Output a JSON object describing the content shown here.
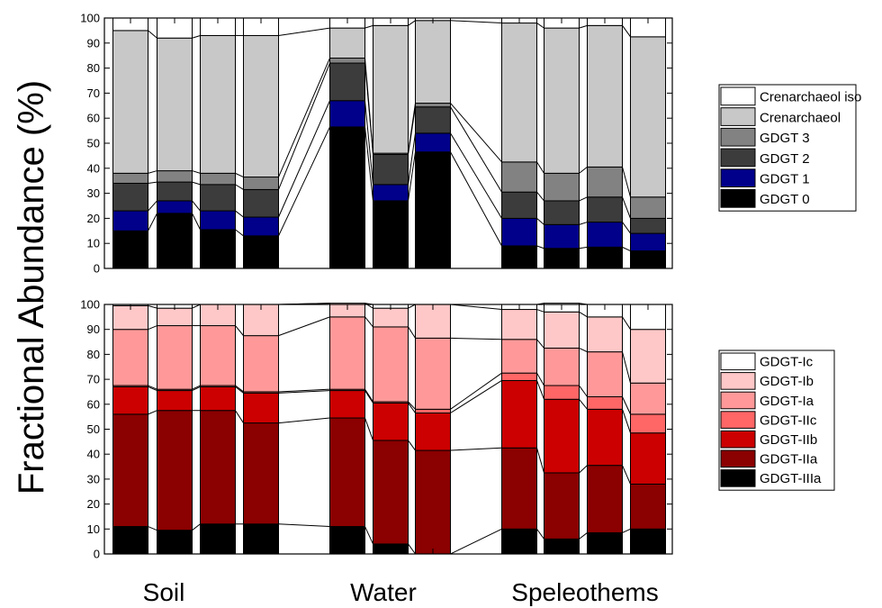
{
  "figure": {
    "ylabel": "Fractional Abundance (%)",
    "groups": [
      "Soil",
      "Water",
      "Speleothems"
    ]
  },
  "chart_data": [
    {
      "type": "bar",
      "stacked": true,
      "ylim": [
        0,
        100
      ],
      "yticks": [
        0,
        10,
        20,
        30,
        40,
        50,
        60,
        70,
        80,
        90,
        100
      ],
      "legend_position": "right",
      "groups": [
        {
          "label": "Soil",
          "bars": [
            0,
            1,
            2,
            3
          ]
        },
        {
          "label": "Water",
          "bars": [
            5,
            6,
            7
          ]
        },
        {
          "label": "Speleothems",
          "bars": [
            9,
            10,
            11,
            12
          ]
        }
      ],
      "series": [
        {
          "name": "GDGT 0",
          "color": "#000000",
          "values": [
            15,
            22,
            15.5,
            13,
            null,
            56.5,
            27,
            46.5,
            null,
            9,
            8,
            8.5,
            7
          ]
        },
        {
          "name": "GDGT 1",
          "color": "#00008b",
          "values": [
            8,
            5,
            7.5,
            7.5,
            null,
            10.5,
            6.5,
            7.5,
            null,
            11,
            9.5,
            10,
            7
          ]
        },
        {
          "name": "GDGT 2",
          "color": "#3c3c3c",
          "values": [
            11,
            7.5,
            10.5,
            11,
            null,
            15,
            12,
            10.5,
            null,
            10.5,
            9.5,
            10,
            6
          ]
        },
        {
          "name": "GDGT 3",
          "color": "#828282",
          "values": [
            4,
            4.5,
            4.5,
            5,
            null,
            2,
            0.5,
            1.5,
            null,
            12,
            11,
            12,
            8.5
          ]
        },
        {
          "name": "Crenarchaeol",
          "color": "#c8c8c8",
          "values": [
            57,
            53,
            55,
            56.5,
            null,
            12,
            51,
            33,
            null,
            55.5,
            58,
            56.5,
            64
          ]
        },
        {
          "name": "Crenarchaeol iso",
          "color": "#ffffff",
          "values": [
            5,
            8,
            7,
            7,
            null,
            4,
            3,
            1,
            null,
            2,
            4,
            3,
            7.5
          ]
        }
      ]
    },
    {
      "type": "bar",
      "stacked": true,
      "ylim": [
        0,
        100
      ],
      "yticks": [
        0,
        10,
        20,
        30,
        40,
        50,
        60,
        70,
        80,
        90,
        100
      ],
      "legend_position": "right",
      "groups": [
        {
          "label": "Soil",
          "bars": [
            0,
            1,
            2,
            3
          ]
        },
        {
          "label": "Water",
          "bars": [
            5,
            6,
            7
          ]
        },
        {
          "label": "Speleothems",
          "bars": [
            9,
            10,
            11,
            12
          ]
        }
      ],
      "series": [
        {
          "name": "GDGT-IIIa",
          "color": "#000000",
          "values": [
            11,
            9.5,
            12,
            12,
            null,
            11,
            4,
            0,
            null,
            10,
            6,
            8.5,
            10
          ]
        },
        {
          "name": "GDGT-IIa",
          "color": "#8b0000",
          "values": [
            45,
            48,
            45.5,
            40.5,
            null,
            43.5,
            41.5,
            41.5,
            null,
            32.5,
            26.5,
            27,
            18
          ]
        },
        {
          "name": "GDGT-IIb",
          "color": "#cc0000",
          "values": [
            11,
            8,
            9.5,
            12,
            null,
            11,
            15,
            15,
            null,
            27,
            29.5,
            22.5,
            20.5
          ]
        },
        {
          "name": "GDGT-IIc",
          "color": "#ff6666",
          "values": [
            0.5,
            0.5,
            0.5,
            0.5,
            null,
            0.5,
            0.5,
            1.5,
            null,
            3,
            5.5,
            5,
            7.5
          ]
        },
        {
          "name": "GDGT-Ia",
          "color": "#ff9999",
          "values": [
            22.5,
            25.5,
            24,
            22.5,
            null,
            29,
            30,
            28.5,
            null,
            13.5,
            15,
            18,
            12.5
          ]
        },
        {
          "name": "GDGT-Ib",
          "color": "#ffc8c8",
          "values": [
            9.5,
            7,
            8.5,
            12.5,
            null,
            5.5,
            7.5,
            13.5,
            null,
            12,
            14.5,
            14,
            21.5
          ]
        },
        {
          "name": "GDGT-Ic",
          "color": "#ffffff",
          "values": [
            0.5,
            1.5,
            0,
            0,
            null,
            0,
            1.5,
            0,
            null,
            2,
            3.5,
            5,
            10
          ]
        }
      ]
    }
  ]
}
